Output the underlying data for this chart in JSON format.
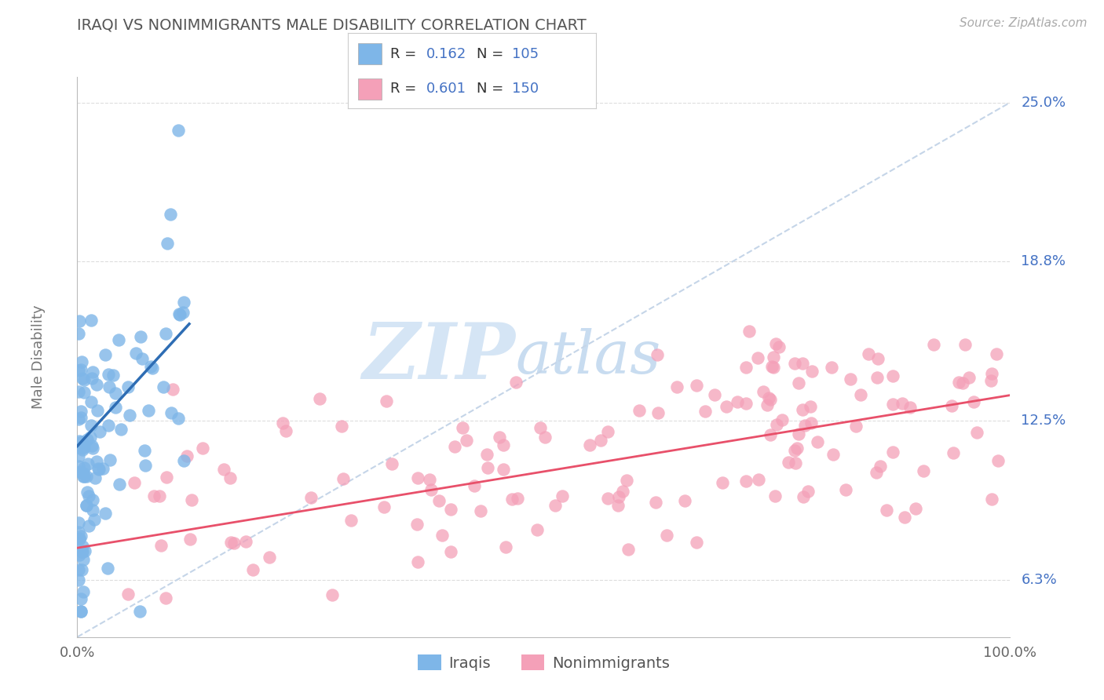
{
  "title": "IRAQI VS NONIMMIGRANTS MALE DISABILITY CORRELATION CHART",
  "source": "Source: ZipAtlas.com",
  "ylabel": "Male Disability",
  "xlim": [
    0.0,
    1.0
  ],
  "ylim": [
    0.04,
    0.26
  ],
  "ytick_labels": [
    "6.3%",
    "12.5%",
    "18.8%",
    "25.0%"
  ],
  "ytick_vals": [
    0.0625,
    0.125,
    0.1875,
    0.25
  ],
  "xtick_labels": [
    "0.0%",
    "100.0%"
  ],
  "xtick_vals": [
    0.0,
    1.0
  ],
  "iraqi_color": "#7EB6E8",
  "nonimm_color": "#F4A0B8",
  "iraqi_line_color": "#2E6DB4",
  "nonimm_line_color": "#E8506A",
  "diagonal_color": "#C5D5E8",
  "watermark_zip": "ZIP",
  "watermark_atlas": "atlas",
  "background_color": "#FFFFFF",
  "title_color": "#555555",
  "value_color": "#4472C4",
  "axis_label_color": "#777777",
  "grid_color": "#DDDDDD",
  "legend_label1": "Iraqis",
  "legend_label2": "Nonimmigrants",
  "iraqi_R": "0.162",
  "iraqi_N": "105",
  "nonimm_R": "0.601",
  "nonimm_N": "150",
  "nonimm_line_y0": 0.075,
  "nonimm_line_y1": 0.135,
  "iraqi_line_x0": 0.0,
  "iraqi_line_y0": 0.115,
  "iraqi_line_x1": 0.12,
  "iraqi_line_y1": 0.163
}
